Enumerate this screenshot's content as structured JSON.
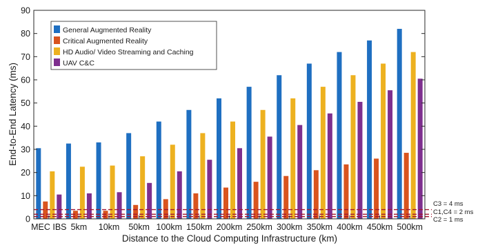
{
  "chart_data": {
    "type": "bar",
    "xlabel": "Distance to the Cloud Computing Infrastructure (km)",
    "ylabel": "End-to-End Latency (ms)",
    "ylim": [
      0,
      90
    ],
    "yticks": [
      0,
      10,
      20,
      30,
      40,
      50,
      60,
      70,
      80,
      90
    ],
    "grid": false,
    "legend_position": "top-left",
    "categories": [
      "MEC IBS",
      "5km",
      "10km",
      "50km",
      "100km",
      "150km",
      "200km",
      "250km",
      "300km",
      "350km",
      "400km",
      "450km",
      "500km"
    ],
    "series": [
      {
        "name": "General Augmented Reality",
        "color": "#1f6fc1",
        "values": [
          30.5,
          32.5,
          33,
          37,
          42,
          47,
          52,
          57,
          62,
          67,
          72,
          77,
          82
        ]
      },
      {
        "name": "Critical Augmented Reality",
        "color": "#d9541e",
        "values": [
          7.5,
          3.5,
          3.5,
          6,
          8.5,
          11,
          13.5,
          16,
          18.5,
          21,
          23.5,
          26,
          28.5
        ]
      },
      {
        "name": "HD Audio/ Video Streaming and Caching",
        "color": "#edb120",
        "values": [
          20.5,
          22.5,
          23,
          27,
          32,
          37,
          42,
          47,
          52,
          57,
          62,
          67,
          72
        ]
      },
      {
        "name": "UAV C&C",
        "color": "#7e2f8e",
        "values": [
          10.5,
          11,
          11.5,
          15.5,
          20.5,
          25.5,
          30.5,
          35.5,
          40.5,
          45.5,
          50.5,
          55.5,
          60.5
        ]
      }
    ],
    "reference_lines": [
      {
        "label": "C3 = 4 ms",
        "value": 4,
        "color": "#a2142f"
      },
      {
        "label": "C1,C4 = 2 ms",
        "value": 2,
        "color": "#a2142f"
      },
      {
        "label": "C2 = 1 ms",
        "value": 1,
        "color": "#a2142f"
      }
    ]
  }
}
